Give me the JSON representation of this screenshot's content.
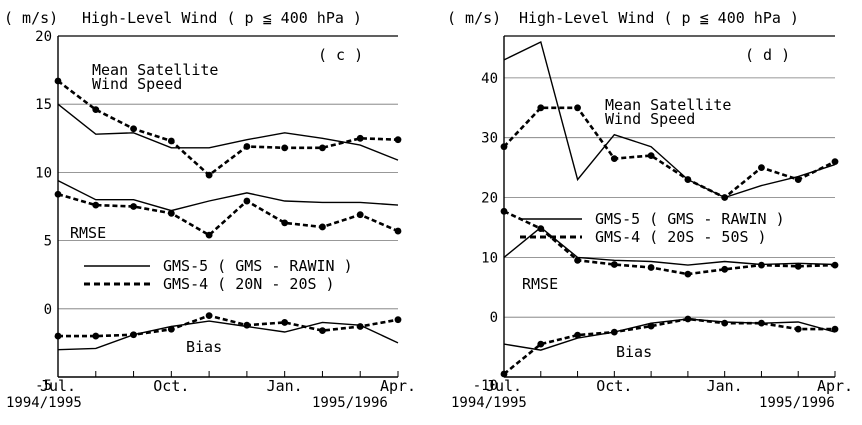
{
  "chart_data": [
    {
      "type": "line",
      "unit_label": "( m/s)",
      "title": "High-Level Wind ( p ≦ 400 hPa )",
      "panel_label": "( c )",
      "ylim": [
        -5,
        20
      ],
      "yticks": [
        "-5",
        "0",
        "5",
        "10",
        "15",
        "20"
      ],
      "xticks": [
        "Jul.",
        "Oct.",
        "Jan.",
        "Apr."
      ],
      "x_start_label": "1994/1995",
      "x_end_label": "1995/1996",
      "grid": true,
      "legend": {
        "solid_label": "GMS-5   ( GMS - RAWIN )",
        "dashed_label": "GMS-4   ( 20N - 20S )"
      },
      "group_labels": {
        "speed": "Mean Satellite\nWind Speed",
        "rmse": "RMSE",
        "bias": "Bias"
      },
      "x": [
        0,
        1,
        2,
        3,
        4,
        5,
        6,
        7,
        8,
        9
      ],
      "series": [
        {
          "group": "speed",
          "style": "solid",
          "values": [
            15.0,
            12.8,
            12.9,
            11.8,
            11.8,
            12.4,
            12.9,
            12.5,
            12.0,
            10.9
          ]
        },
        {
          "group": "speed",
          "style": "dashed",
          "values": [
            16.7,
            14.6,
            13.2,
            12.3,
            9.8,
            11.9,
            11.8,
            11.8,
            12.5,
            12.4
          ]
        },
        {
          "group": "rmse",
          "style": "solid",
          "values": [
            9.4,
            8.0,
            8.0,
            7.2,
            7.9,
            8.5,
            7.9,
            7.8,
            7.8,
            7.6
          ]
        },
        {
          "group": "rmse",
          "style": "dashed",
          "values": [
            8.4,
            7.6,
            7.5,
            7.0,
            5.4,
            7.9,
            6.3,
            6.0,
            6.9,
            5.7
          ]
        },
        {
          "group": "bias",
          "style": "solid",
          "values": [
            -3.0,
            -2.9,
            -1.9,
            -1.3,
            -0.9,
            -1.3,
            -1.7,
            -1.0,
            -1.2,
            -2.5
          ]
        },
        {
          "group": "bias",
          "style": "dashed",
          "values": [
            -2.0,
            -2.0,
            -1.9,
            -1.5,
            -0.5,
            -1.2,
            -1.0,
            -1.6,
            -1.3,
            -0.8
          ]
        }
      ]
    },
    {
      "type": "line",
      "unit_label": "( m/s)",
      "title": "High-Level Wind ( p ≦ 400 hPa )",
      "panel_label": "( d )",
      "ylim": [
        -10,
        47
      ],
      "yticks": [
        "-10",
        "0",
        "10",
        "20",
        "30",
        "40"
      ],
      "xticks": [
        "Jul.",
        "Oct.",
        "Jan.",
        "Apr."
      ],
      "x_start_label": "1994/1995",
      "x_end_label": "1995/1996",
      "grid": true,
      "legend": {
        "solid_label": "GMS-5   ( GMS - RAWIN )",
        "dashed_label": "GMS-4  ( 20S - 50S )"
      },
      "group_labels": {
        "speed": "Mean Satellite\nWind Speed",
        "rmse": "RMSE",
        "bias": "Bias"
      },
      "x": [
        0,
        1,
        2,
        3,
        4,
        5,
        6,
        7,
        8,
        9
      ],
      "series": [
        {
          "group": "speed",
          "style": "solid",
          "values": [
            43.0,
            46.0,
            23.0,
            30.5,
            28.5,
            23.0,
            20.0,
            22.0,
            23.5,
            25.5
          ]
        },
        {
          "group": "speed",
          "style": "dashed",
          "values": [
            28.5,
            35.0,
            35.0,
            26.5,
            27.0,
            23.0,
            20.0,
            25.0,
            23.0,
            26.0
          ]
        },
        {
          "group": "rmse",
          "style": "solid",
          "values": [
            10.0,
            15.0,
            10.0,
            9.5,
            9.3,
            8.7,
            9.3,
            8.8,
            9.0,
            8.8
          ]
        },
        {
          "group": "rmse",
          "style": "dashed",
          "values": [
            17.7,
            14.8,
            9.5,
            8.8,
            8.3,
            7.2,
            8.0,
            8.7,
            8.5,
            8.7
          ]
        },
        {
          "group": "bias",
          "style": "solid",
          "values": [
            -4.5,
            -5.5,
            -3.5,
            -2.5,
            -1.0,
            -0.3,
            -0.8,
            -1.0,
            -0.8,
            -2.5
          ]
        },
        {
          "group": "bias",
          "style": "dashed",
          "values": [
            -9.5,
            -4.5,
            -3.0,
            -2.5,
            -1.5,
            -0.3,
            -1.0,
            -1.0,
            -2.0,
            -2.0
          ]
        }
      ]
    }
  ]
}
